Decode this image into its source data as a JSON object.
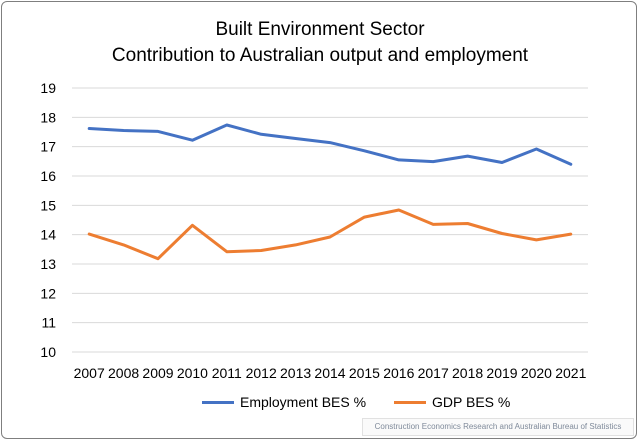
{
  "title_line1": "Built Environment Sector",
  "title_line2": "Contribution to Australian output and employment",
  "source": "Construction Economics Research and Australian Bureau of Statistics",
  "chart_data": {
    "type": "line",
    "x": [
      "2007",
      "2008",
      "2009",
      "2010",
      "2011",
      "2012",
      "2013",
      "2014",
      "2015",
      "2016",
      "2017",
      "2018",
      "2019",
      "2020",
      "2021"
    ],
    "ylim": [
      10,
      19
    ],
    "yticks": [
      10,
      11,
      12,
      13,
      14,
      15,
      16,
      17,
      18,
      19
    ],
    "grid": true,
    "legend_position": "bottom",
    "series": [
      {
        "name": "Employment BES %",
        "color": "#4472C4",
        "values": [
          17.62,
          17.55,
          17.52,
          17.22,
          17.74,
          17.42,
          17.28,
          17.14,
          16.86,
          16.55,
          16.49,
          16.68,
          16.46,
          16.92,
          16.4
        ]
      },
      {
        "name": "GDP BES %",
        "color": "#ED7D31",
        "values": [
          14.02,
          13.65,
          13.18,
          14.32,
          13.42,
          13.46,
          13.65,
          13.92,
          14.6,
          14.84,
          14.35,
          14.38,
          14.04,
          13.82,
          14.02
        ]
      }
    ]
  }
}
